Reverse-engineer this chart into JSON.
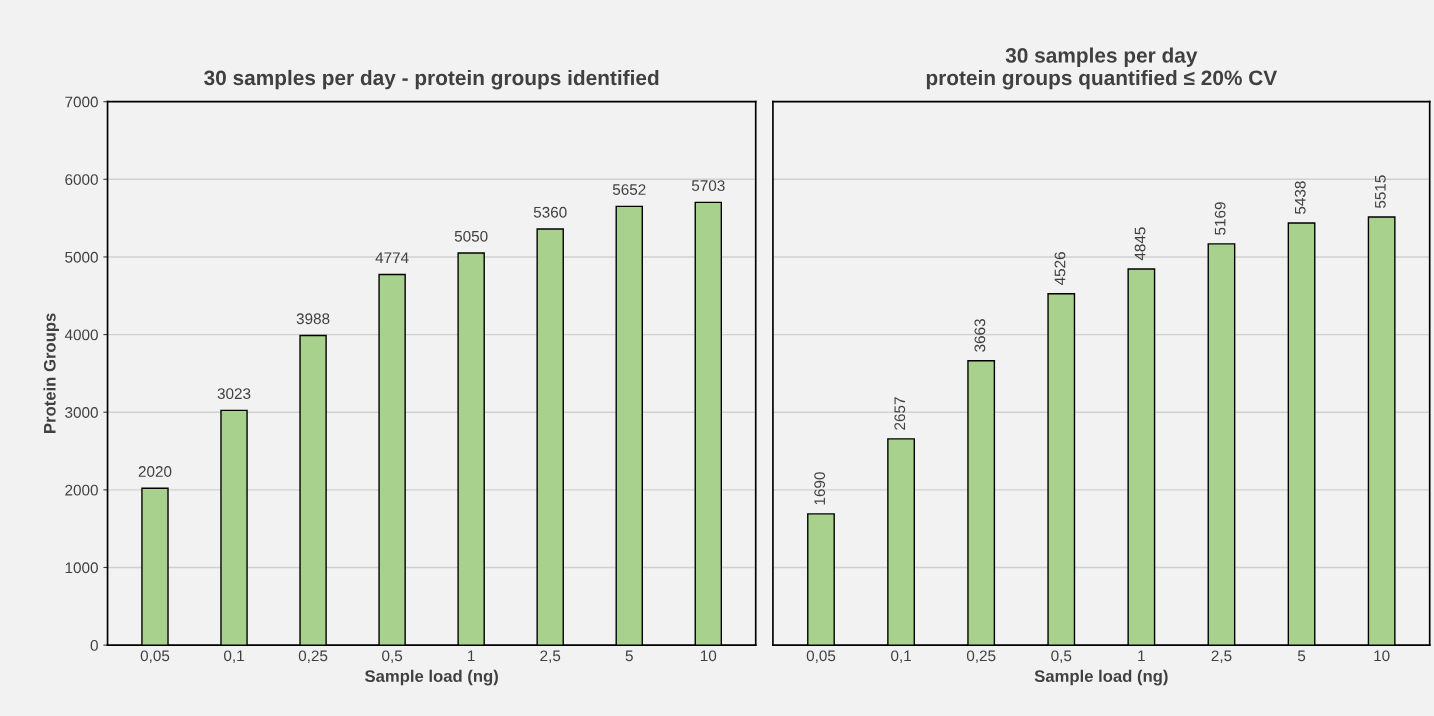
{
  "chart_data": [
    {
      "type": "bar",
      "title": "30 samples per day - protein groups identified",
      "xlabel": "Sample load (ng)",
      "ylabel": "Protein Groups",
      "categories": [
        "0,05",
        "0,1",
        "0,25",
        "0,5",
        "1",
        "2,5",
        "5",
        "10"
      ],
      "values": [
        2020,
        3023,
        3988,
        4774,
        5050,
        5360,
        5652,
        5703
      ],
      "color": "#a9d18e",
      "ylim": [
        0,
        7000
      ],
      "yticks": [
        0,
        1000,
        2000,
        3000,
        4000,
        5000,
        6000,
        7000
      ],
      "grid": "y",
      "data_labels": true
    },
    {
      "type": "bar",
      "title": "30 samples per day\nprotein groups quantified ≤ 20% CV",
      "xlabel": "Sample load (ng)",
      "categories": [
        "0,05",
        "0,1",
        "0,25",
        "0,5",
        "1",
        "2,5",
        "5",
        "10"
      ],
      "values": [
        1690,
        2657,
        3663,
        4526,
        4845,
        5169,
        5438,
        5515
      ],
      "color": "#a9d18e",
      "ylim": [
        0,
        7000
      ],
      "yticks": [
        0,
        1000,
        2000,
        3000,
        4000,
        5000,
        6000,
        7000
      ],
      "grid": "y",
      "data_labels": true,
      "tick_labels": "x"
    }
  ]
}
